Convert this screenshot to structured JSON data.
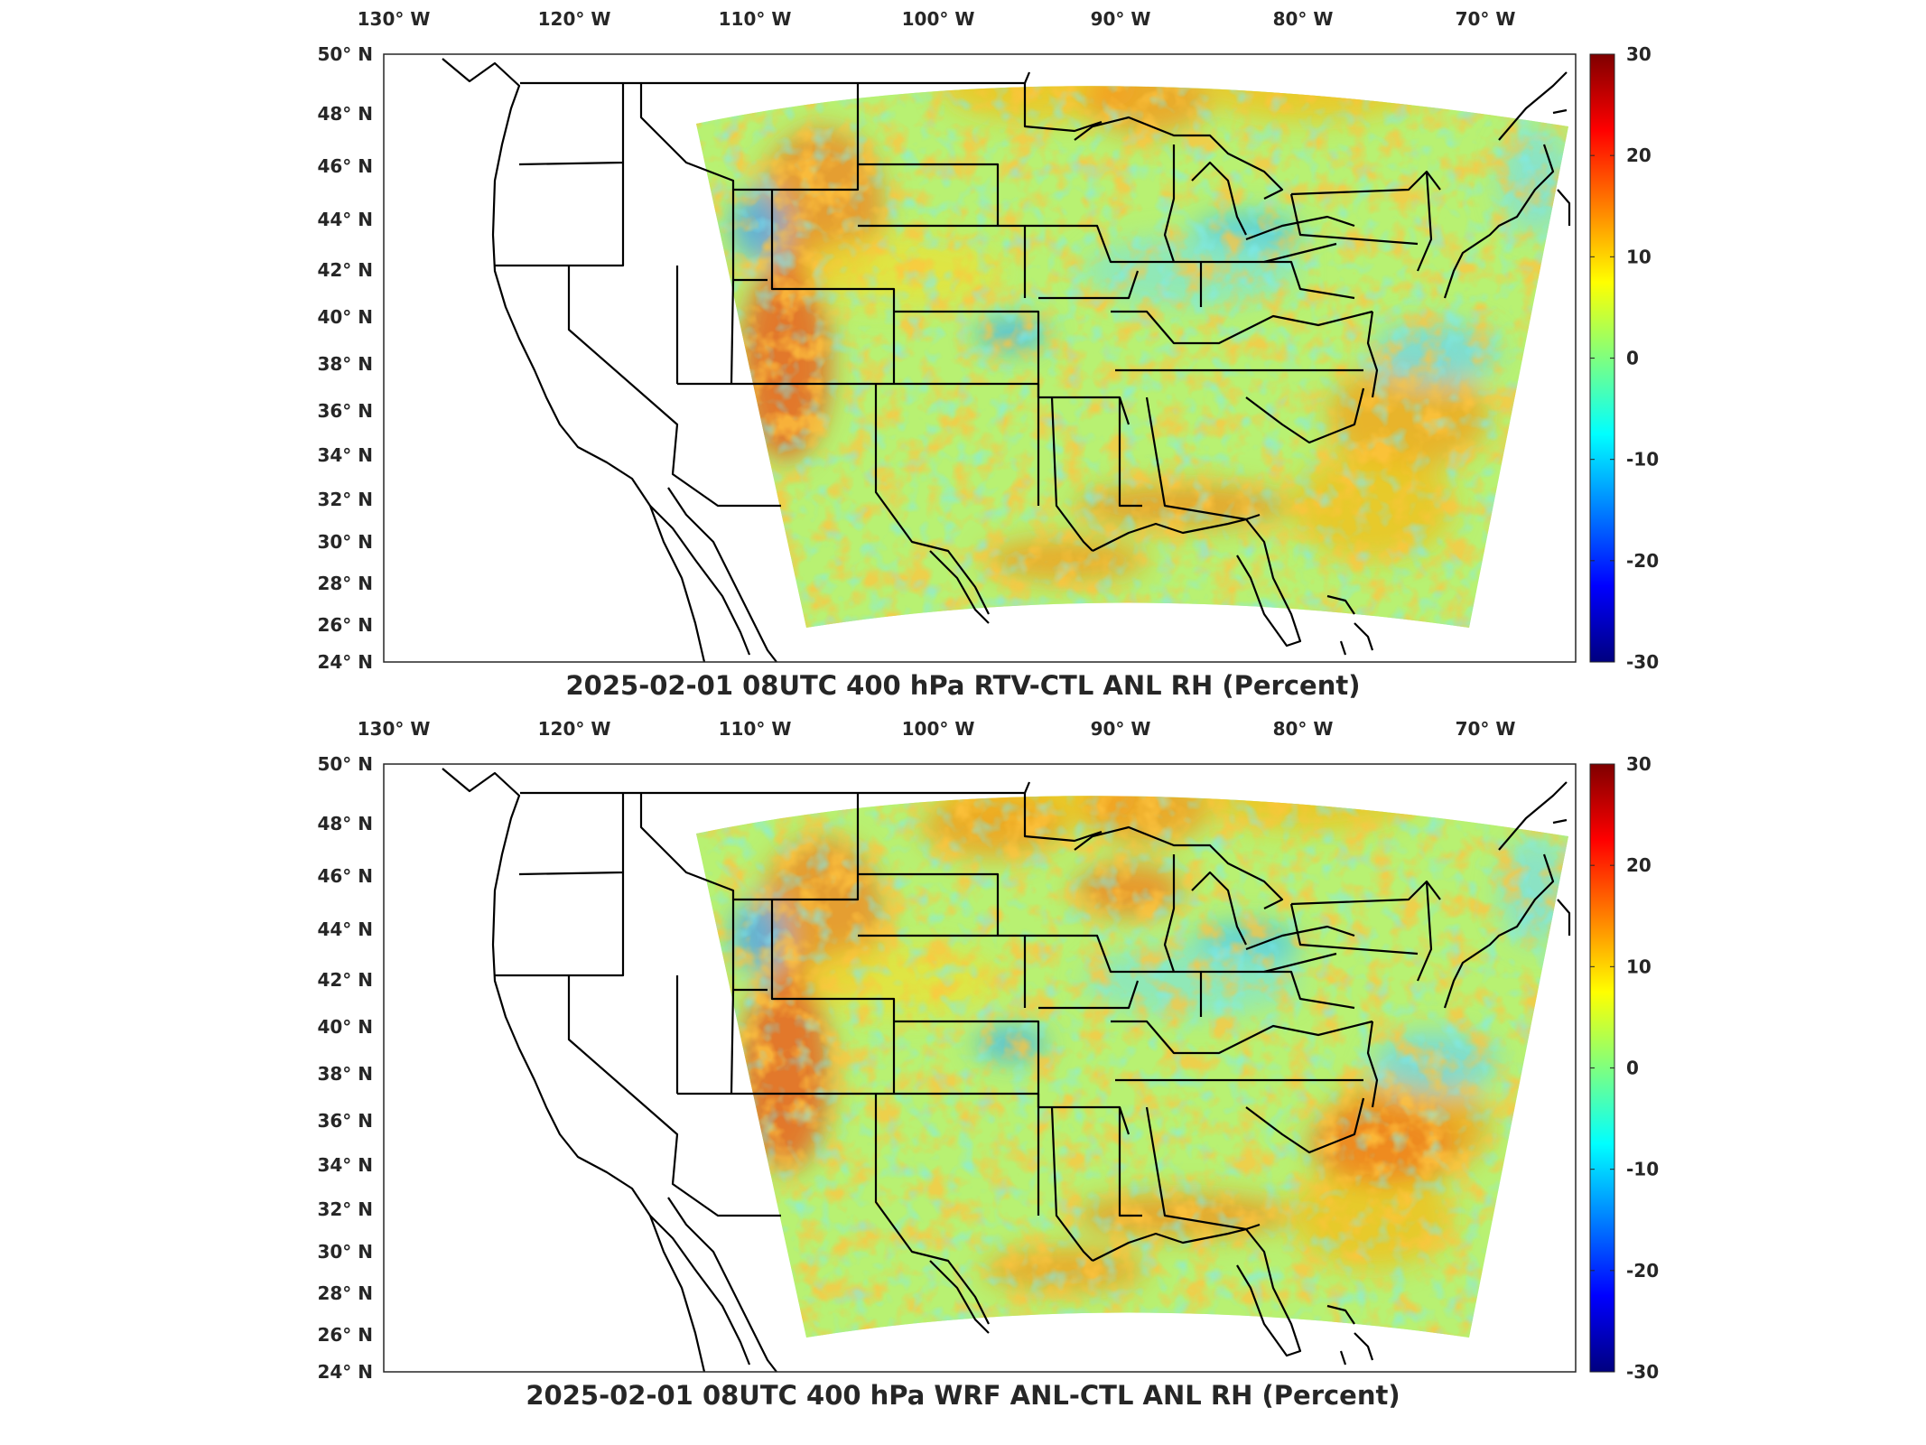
{
  "panels": [
    {
      "title": "2025-02-01 08UTC 400 hPa RTV-CTL ANL RH (Percent)",
      "variant": 1
    },
    {
      "title": "2025-02-01 08UTC 400 hPa WRF ANL-CTL ANL RH (Percent)",
      "variant": 2
    }
  ],
  "map": {
    "lon_labels": [
      "130° W",
      "120° W",
      "110° W",
      "100° W",
      "90° W",
      "80° W",
      "70° W"
    ],
    "lat_labels": [
      "50° N",
      "48° N",
      "46° N",
      "44° N",
      "42° N",
      "40° N",
      "38° N",
      "36° N",
      "34° N",
      "32° N",
      "30° N",
      "28° N",
      "26° N",
      "24° N"
    ]
  },
  "colorbar": {
    "ticks": [
      "30",
      "20",
      "10",
      "0",
      "-10",
      "-20",
      "-30"
    ],
    "colormap": "jet",
    "colors": [
      "#00007f",
      "#0000ff",
      "#007fff",
      "#00ffff",
      "#7fff7f",
      "#ffff00",
      "#ff7f00",
      "#ff0000",
      "#7f0000"
    ]
  }
}
